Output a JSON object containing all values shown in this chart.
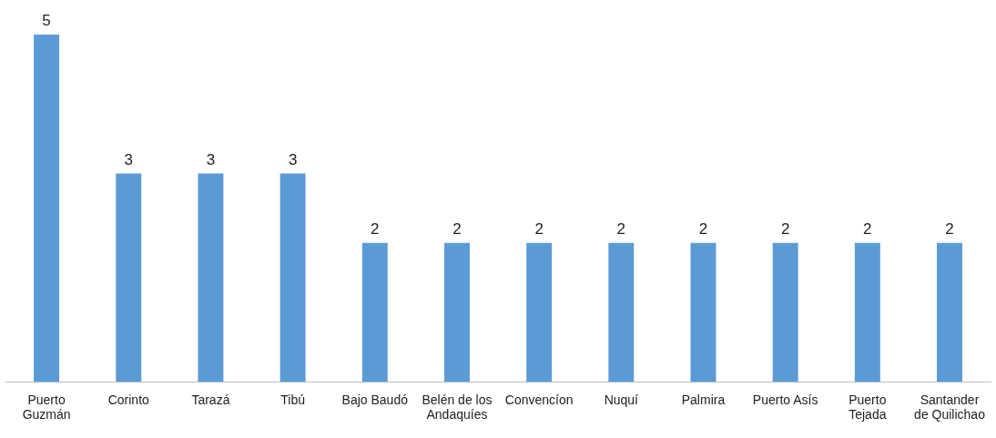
{
  "chart_data": {
    "type": "bar",
    "categories": [
      "Puerto Guzmán",
      "Corinto",
      "Tarazá",
      "Tibú",
      "Bajo Baudó",
      "Belén de los Andaquíes",
      "Convencíon",
      "Nuquí",
      "Palmira",
      "Puerto Asís",
      "Puerto Tejada",
      "Santander de Quilichao"
    ],
    "values": [
      5,
      3,
      3,
      3,
      2,
      2,
      2,
      2,
      2,
      2,
      2,
      2
    ],
    "color": "#5b9bd5",
    "data_labels": true,
    "grid": false,
    "legend": false
  }
}
